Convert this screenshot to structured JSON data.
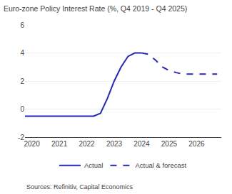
{
  "chart_data": {
    "type": "line",
    "title": "Euro-zone Policy Interest Rate (%, Q4 2019 - Q4 2025)",
    "annotations": [
      "Sources: Refinitiv, Capital Economics"
    ],
    "series": [
      {
        "name": "Actual",
        "color": "#2626b8",
        "line_style": "solid",
        "x": [
          2019.75,
          2020.0,
          2020.25,
          2020.5,
          2020.75,
          2021.0,
          2021.25,
          2021.5,
          2021.75,
          2022.0,
          2022.25,
          2022.5,
          2022.75,
          2023.0,
          2023.25,
          2023.5,
          2023.75,
          2024.0
        ],
        "values": [
          -0.5,
          -0.5,
          -0.5,
          -0.5,
          -0.5,
          -0.5,
          -0.5,
          -0.5,
          -0.5,
          -0.5,
          -0.5,
          -0.3,
          0.75,
          2.0,
          3.0,
          3.75,
          4.0,
          4.0
        ]
      },
      {
        "name": "Actual & forecast",
        "color": "#2626b8",
        "line_style": "dashed",
        "x": [
          2024.0,
          2024.25,
          2024.5,
          2024.75,
          2025.0,
          2025.25,
          2025.5,
          2025.75,
          2026.0,
          2026.25,
          2026.5,
          2026.75
        ],
        "values": [
          4.0,
          3.9,
          3.5,
          3.0,
          2.75,
          2.6,
          2.5,
          2.5,
          2.5,
          2.5,
          2.5,
          2.5
        ]
      }
    ],
    "xlim": [
      2019.75,
      2026.9
    ],
    "xticks": [
      2020,
      2021,
      2022,
      2023,
      2024,
      2025,
      2026
    ],
    "ylim": [
      -2,
      6
    ],
    "yticks": [
      -2,
      0,
      2,
      4,
      6
    ],
    "grid": "y",
    "legend": "bottom"
  }
}
